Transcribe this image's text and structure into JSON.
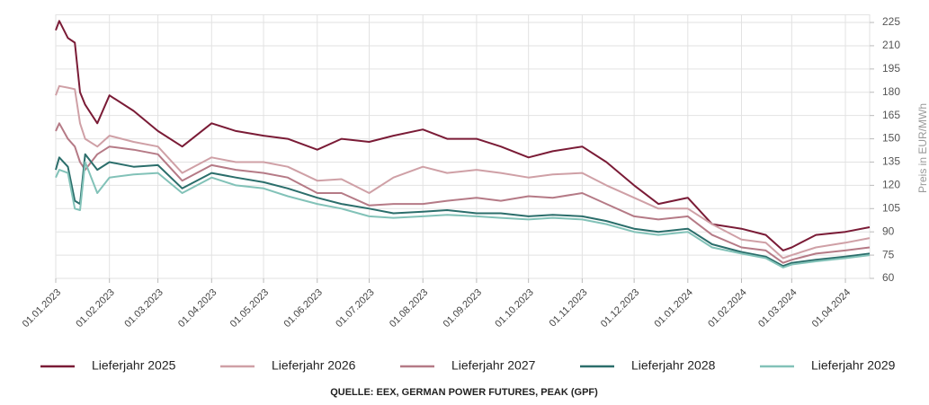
{
  "chart_data": {
    "type": "line",
    "y_axis_label": "Preis in EUR/MWh",
    "source": "QUELLE: EEX, GERMAN POWER FUTURES, PEAK (GPF)",
    "x": [
      "01.01.2023",
      "03.01.2023",
      "08.01.2023",
      "12.01.2023",
      "15.01.2023",
      "18.01.2023",
      "25.01.2023",
      "01.02.2023",
      "15.02.2023",
      "01.03.2023",
      "15.03.2023",
      "01.04.2023",
      "15.04.2023",
      "01.05.2023",
      "15.05.2023",
      "01.06.2023",
      "15.06.2023",
      "01.07.2023",
      "15.07.2023",
      "01.08.2023",
      "15.08.2023",
      "01.09.2023",
      "15.09.2023",
      "01.10.2023",
      "15.10.2023",
      "01.11.2023",
      "15.11.2023",
      "01.12.2023",
      "15.12.2023",
      "01.01.2024",
      "15.01.2024",
      "01.02.2024",
      "15.02.2024",
      "25.02.2024",
      "01.03.2024",
      "15.03.2024",
      "01.04.2024",
      "15.04.2024"
    ],
    "xlim": [
      "01.01.2023",
      "15.04.2024"
    ],
    "xticks": [
      "01.01.2023",
      "01.02.2023",
      "01.03.2023",
      "01.04.2023",
      "01.05.2023",
      "01.06.2023",
      "01.07.2023",
      "01.08.2023",
      "01.09.2023",
      "01.10.2023",
      "01.11.2023",
      "01.12.2023",
      "01.01.2024",
      "01.02.2024",
      "01.03.2024",
      "01.04.2024"
    ],
    "ylim": [
      60,
      230
    ],
    "yticks": [
      60,
      75,
      90,
      105,
      120,
      135,
      150,
      165,
      180,
      195,
      210,
      225
    ],
    "grid": true,
    "legend": "bottom",
    "series": [
      {
        "name": "Lieferjahr 2025",
        "color": "#7a1b36",
        "values": [
          220,
          226,
          215,
          212,
          180,
          172,
          160,
          178,
          168,
          155,
          145,
          160,
          155,
          152,
          150,
          143,
          150,
          148,
          152,
          156,
          150,
          150,
          145,
          138,
          142,
          145,
          135,
          120,
          108,
          112,
          95,
          92,
          88,
          78,
          80,
          88,
          90,
          93
        ]
      },
      {
        "name": "Lieferjahr 2026",
        "color": "#cfa0a6",
        "values": [
          178,
          184,
          183,
          182,
          160,
          150,
          145,
          152,
          148,
          145,
          128,
          138,
          135,
          135,
          132,
          123,
          124,
          115,
          125,
          132,
          128,
          130,
          128,
          125,
          127,
          128,
          120,
          112,
          105,
          105,
          95,
          85,
          83,
          73,
          75,
          80,
          83,
          86
        ]
      },
      {
        "name": "Lieferjahr 2027",
        "color": "#b57a86",
        "values": [
          155,
          160,
          150,
          145,
          135,
          130,
          140,
          145,
          143,
          140,
          123,
          133,
          130,
          128,
          125,
          115,
          115,
          107,
          108,
          108,
          110,
          112,
          110,
          113,
          112,
          115,
          108,
          100,
          98,
          100,
          88,
          80,
          78,
          70,
          72,
          76,
          78,
          80
        ]
      },
      {
        "name": "Lieferjahr 2028",
        "color": "#2b6e6b",
        "values": [
          130,
          138,
          132,
          110,
          108,
          140,
          130,
          135,
          132,
          133,
          118,
          128,
          125,
          122,
          118,
          112,
          108,
          105,
          102,
          103,
          104,
          102,
          102,
          100,
          101,
          100,
          97,
          92,
          90,
          92,
          82,
          77,
          74,
          68,
          70,
          72,
          74,
          76
        ]
      },
      {
        "name": "Lieferjahr 2029",
        "color": "#82c2b8",
        "values": [
          125,
          130,
          128,
          105,
          104,
          135,
          115,
          125,
          127,
          128,
          115,
          125,
          120,
          118,
          113,
          108,
          105,
          100,
          99,
          100,
          101,
          100,
          99,
          98,
          99,
          98,
          95,
          90,
          88,
          90,
          80,
          76,
          73,
          67,
          69,
          71,
          73,
          75
        ]
      }
    ]
  }
}
